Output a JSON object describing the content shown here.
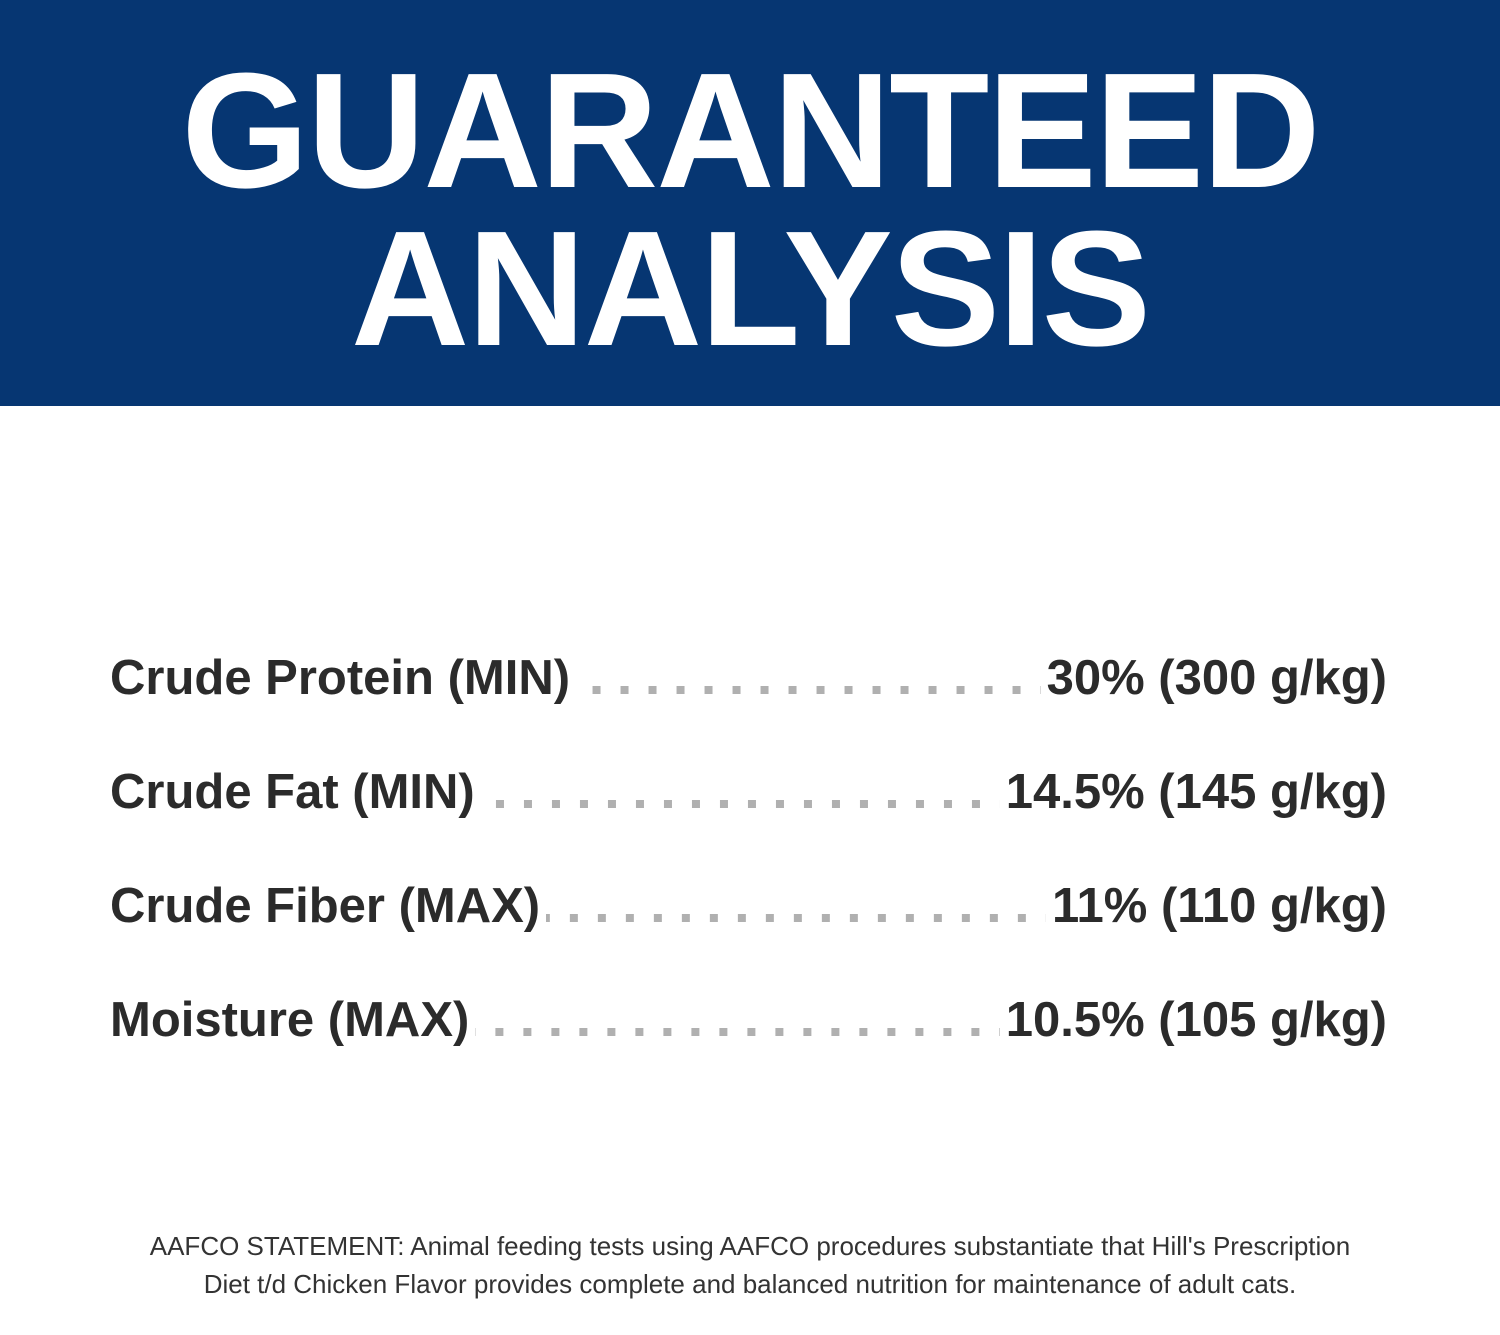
{
  "header": {
    "title_line1": "GUARANTEED",
    "title_line2": "ANALYSIS",
    "background_color": "#063672"
  },
  "analysis": [
    {
      "label": "Crude Protein (MIN)",
      "value": "30% (300 g/kg)"
    },
    {
      "label": "Crude Fat (MIN)",
      "value": "14.5% (145 g/kg)"
    },
    {
      "label": "Crude Fiber (MAX)",
      "value": "11% (110 g/kg)"
    },
    {
      "label": "Moisture (MAX)",
      "value": "10.5% (105 g/kg)"
    }
  ],
  "footer": {
    "statement": "AAFCO STATEMENT: Animal feeding tests using AAFCO procedures substantiate that Hill's Prescription Diet t/d Chicken Flavor provides complete and balanced nutrition for maintenance of adult cats."
  }
}
